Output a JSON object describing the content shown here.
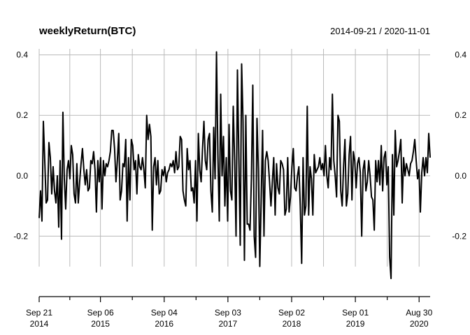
{
  "chart_data": {
    "type": "line",
    "title": "weeklyReturn(BTC)",
    "date_range": "2014-09-21 / 2020-11-01",
    "xlim": [
      "2014-09-21",
      "2020-11-01"
    ],
    "ylim": [
      -0.4,
      0.42
    ],
    "y_ticks": [
      {
        "value": 0.4,
        "label": "0.4"
      },
      {
        "value": 0.2,
        "label": "0.2"
      },
      {
        "value": 0.0,
        "label": "0.0"
      },
      {
        "value": -0.2,
        "label": "-0.2"
      }
    ],
    "x_ticks": [
      {
        "date": "2014-09-21",
        "line1": "Sep 21",
        "line2": "2014"
      },
      {
        "date": "2015-09-06",
        "line1": "Sep 06",
        "line2": "2015"
      },
      {
        "date": "2016-09-04",
        "line1": "Sep 04",
        "line2": "2016"
      },
      {
        "date": "2017-09-03",
        "line1": "Sep 03",
        "line2": "2017"
      },
      {
        "date": "2018-09-02",
        "line1": "Sep 02",
        "line2": "2018"
      },
      {
        "date": "2019-09-01",
        "line1": "Sep 01",
        "line2": "2019"
      },
      {
        "date": "2020-08-30",
        "line1": "Aug 30",
        "line2": "2020"
      }
    ],
    "minor_tick_dates": [
      "2015-03-15",
      "2016-03-06",
      "2017-03-05",
      "2018-03-04",
      "2019-03-03",
      "2020-03-01"
    ],
    "grid": true,
    "series": [
      {
        "name": "",
        "values": [
          -0.14,
          -0.05,
          -0.15,
          0.18,
          0.05,
          -0.09,
          -0.08,
          0.11,
          0.06,
          -0.06,
          0.03,
          -0.05,
          -0.09,
          0.0,
          -0.17,
          0.05,
          -0.21,
          0.21,
          -0.01,
          -0.11,
          0.02,
          0.05,
          -0.01,
          0.1,
          0.07,
          -0.06,
          -0.09,
          0.04,
          -0.09,
          -0.02,
          0.04,
          0.09,
          0.02,
          -0.03,
          0.02,
          -0.05,
          -0.04,
          0.05,
          0.04,
          0.08,
          0.02,
          -0.12,
          0.05,
          -0.02,
          0.06,
          -0.11,
          0.05,
          0.0,
          0.04,
          0.03,
          0.05,
          0.08,
          0.15,
          0.15,
          0.09,
          -0.02,
          0.05,
          0.14,
          -0.08,
          -0.05,
          0.04,
          0.03,
          0.12,
          -0.15,
          0.06,
          -0.08,
          0.12,
          0.1,
          0.02,
          0.05,
          -0.06,
          0.07,
          0.03,
          0.02,
          0.06,
          0.02,
          -0.04,
          0.2,
          0.12,
          0.17,
          0.13,
          -0.18,
          0.03,
          0.06,
          -0.03,
          0.05,
          -0.06,
          -0.05,
          0.02,
          0.0,
          0.03,
          -0.02,
          0.01,
          0.02,
          0.04,
          0.03,
          0.05,
          0.01,
          0.08,
          0.02,
          0.03,
          0.13,
          0.12,
          -0.05,
          -0.08,
          -0.1,
          0.09,
          0.02,
          0.05,
          -0.05,
          -0.04,
          -0.09,
          0.05,
          -0.15,
          0.14,
          0.02,
          -0.02,
          0.09,
          0.18,
          0.05,
          0.02,
          0.12,
          0.14,
          -0.05,
          -0.12,
          0.16,
          -0.01,
          0.41,
          0.07,
          -0.15,
          0.27,
          0.0,
          0.13,
          -0.1,
          0.06,
          -0.15,
          0.17,
          -0.05,
          -0.08,
          0.23,
          0.05,
          -0.2,
          0.35,
          0.06,
          -0.23,
          0.37,
          0.18,
          -0.28,
          0.2,
          -0.16,
          -0.16,
          -0.18,
          -0.01,
          0.3,
          -0.2,
          -0.27,
          0.19,
          0.02,
          -0.3,
          -0.08,
          0.15,
          -0.2,
          0.05,
          0.08,
          0.05,
          -0.02,
          -0.1,
          -0.02,
          0.06,
          -0.13,
          0.04,
          -0.04,
          -0.06,
          0.05,
          0.04,
          0.02,
          -0.13,
          -0.11,
          0.06,
          -0.12,
          -0.07,
          0.03,
          0.09,
          -0.04,
          -0.05,
          0.0,
          0.03,
          -0.1,
          -0.29,
          0.06,
          -0.13,
          -0.1,
          0.23,
          -0.13,
          0.03,
          -0.01,
          -0.13,
          0.07,
          0.01,
          0.02,
          0.03,
          0.06,
          0.02,
          0.04,
          0.0,
          0.1,
          0.0,
          -0.04,
          0.06,
          0.02,
          0.27,
          0.05,
          0.0,
          -0.07,
          0.2,
          0.18,
          -0.05,
          -0.1,
          0.03,
          0.12,
          -0.1,
          -0.06,
          0.07,
          0.13,
          -0.08,
          0.08,
          0.05,
          -0.04,
          0.04,
          0.06,
          0.01,
          -0.2,
          0.02,
          0.05,
          -0.05,
          -0.02,
          0.05,
          0.0,
          -0.07,
          -0.08,
          -0.18,
          0.05,
          -0.02,
          0.05,
          -0.03,
          0.1,
          -0.05,
          0.06,
          0.08,
          -0.03,
          0.03,
          -0.27,
          -0.34,
          0.07,
          -0.13,
          0.15,
          0.03,
          0.05,
          0.08,
          0.12,
          -0.09,
          0.06,
          0.0,
          0.04,
          0.02,
          0.0,
          0.04,
          0.05,
          0.08,
          0.12,
          0.05,
          -0.01,
          0.02,
          -0.12,
          0.01,
          0.06,
          0.0,
          0.06,
          0.01,
          0.14,
          0.06
        ]
      }
    ]
  }
}
